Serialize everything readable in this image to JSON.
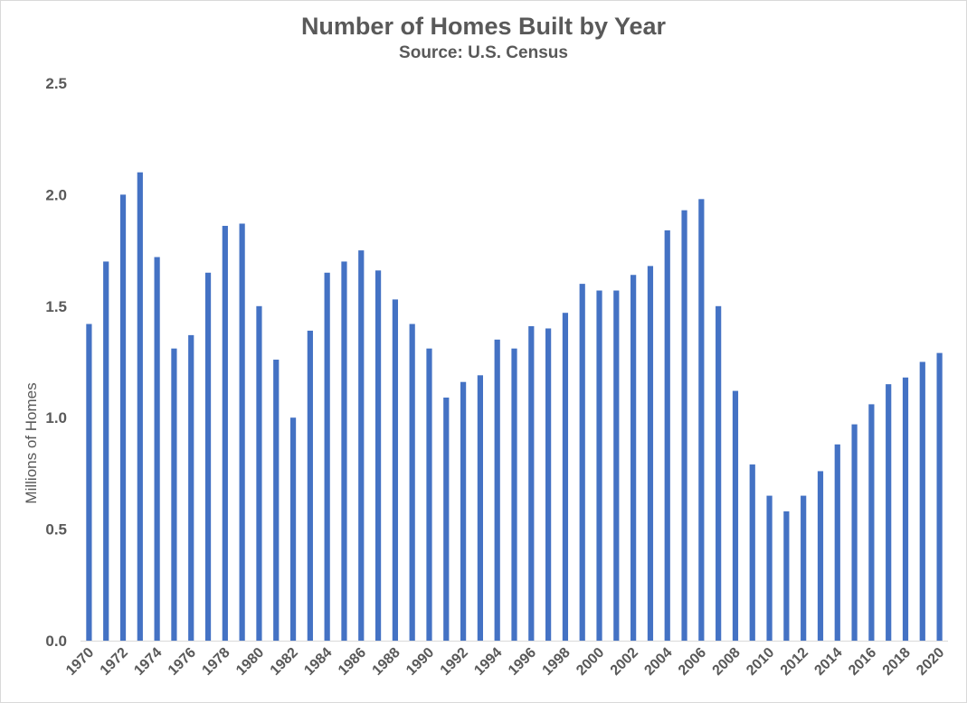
{
  "chart_data": {
    "type": "bar",
    "title": "Number of Homes Built by Year",
    "subtitle": "Source: U.S. Census",
    "xlabel": "",
    "ylabel": "Millions of Homes",
    "ylim": [
      0,
      2.5
    ],
    "yticks": [
      0,
      0.5,
      1.0,
      1.5,
      2.0,
      2.5
    ],
    "ytick_labels": [
      "0.0",
      "0.5",
      "1.0",
      "1.5",
      "2.0",
      "2.5"
    ],
    "xtick_labels": [
      "1970",
      "1972",
      "1974",
      "1976",
      "1978",
      "1980",
      "1982",
      "1984",
      "1986",
      "1988",
      "1990",
      "1992",
      "1994",
      "1996",
      "1998",
      "2000",
      "2002",
      "2004",
      "2006",
      "2008",
      "2010",
      "2012",
      "2014",
      "2016",
      "2018",
      "2020"
    ],
    "grid": false,
    "bar_color": "#4472C4",
    "categories": [
      1970,
      1971,
      1972,
      1973,
      1974,
      1975,
      1976,
      1977,
      1978,
      1979,
      1980,
      1981,
      1982,
      1983,
      1984,
      1985,
      1986,
      1987,
      1988,
      1989,
      1990,
      1991,
      1992,
      1993,
      1994,
      1995,
      1996,
      1997,
      1998,
      1999,
      2000,
      2001,
      2002,
      2003,
      2004,
      2005,
      2006,
      2007,
      2008,
      2009,
      2010,
      2011,
      2012,
      2013,
      2014,
      2015,
      2016,
      2017,
      2018,
      2019,
      2020
    ],
    "values": [
      1.42,
      1.7,
      2.0,
      2.1,
      1.72,
      1.31,
      1.37,
      1.65,
      1.86,
      1.87,
      1.5,
      1.26,
      1.0,
      1.39,
      1.65,
      1.7,
      1.75,
      1.66,
      1.53,
      1.42,
      1.31,
      1.09,
      1.16,
      1.19,
      1.35,
      1.31,
      1.41,
      1.4,
      1.47,
      1.6,
      1.57,
      1.57,
      1.64,
      1.68,
      1.84,
      1.93,
      1.98,
      1.5,
      1.12,
      0.79,
      0.65,
      0.58,
      0.65,
      0.76,
      0.88,
      0.97,
      1.06,
      1.15,
      1.18,
      1.25,
      1.29
    ]
  }
}
